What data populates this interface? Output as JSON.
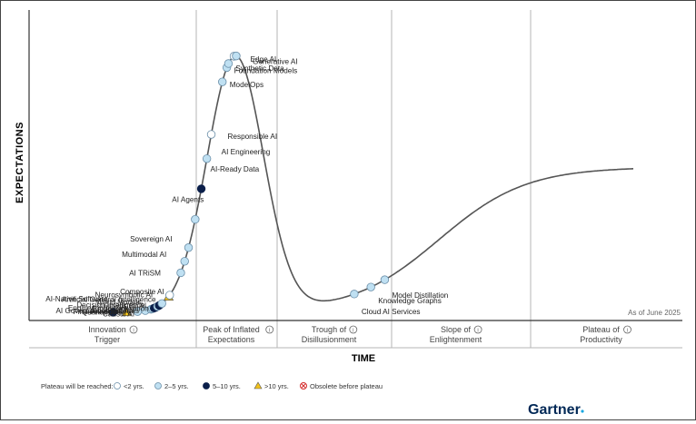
{
  "chart_data": {
    "type": "hype-cycle",
    "title": "",
    "ylabel": "EXPECTATIONS",
    "xlabel": "TIME",
    "as_of": "As of June 2025",
    "brand": "Gartner",
    "phases": [
      {
        "line1": "Innovation",
        "line2": "Trigger"
      },
      {
        "line1": "Peak of Inflated",
        "line2": "Expectations"
      },
      {
        "line1": "Trough of",
        "line2": "Disillusionment"
      },
      {
        "line1": "Slope of",
        "line2": "Enlightenment"
      },
      {
        "line1": "Plateau of",
        "line2": "Productivity"
      }
    ],
    "legend": {
      "title": "Plateau will be reached:",
      "items": [
        {
          "label": "<2 yrs.",
          "category": "lt2"
        },
        {
          "label": "2–5 yrs.",
          "category": "2to5"
        },
        {
          "label": "5–10 yrs.",
          "category": "5to10"
        },
        {
          "label": ">10 yrs.",
          "category": "gt10"
        },
        {
          "label": "Obsolete before plateau",
          "category": "obsolete"
        }
      ]
    },
    "category_colors": {
      "lt2": "#ffffff",
      "2to5": "#bfe0f2",
      "5to10": "#0b1f4a",
      "gt10": "#f2c21b",
      "obsolete": "#d42a2a"
    },
    "technologies": [
      {
        "name": "AI-Native Software Engineering",
        "lines": [
          "AI-Native Software",
          "Engineering"
        ],
        "category": "5to10",
        "t": 0.055
      },
      {
        "name": "Quantum AI",
        "lines": [
          "Quantum AI"
        ],
        "category": "gt10",
        "t": 0.079
      },
      {
        "name": "First-Principles AI",
        "lines": [
          "First-Principles AI"
        ],
        "category": "2to5",
        "t": 0.099
      },
      {
        "name": "AI Governance Platforms",
        "lines": [
          "AI Governance Platforms"
        ],
        "category": "2to5",
        "t": 0.113
      },
      {
        "name": "Causal AI",
        "lines": [
          "Causal AI"
        ],
        "category": "2to5",
        "t": 0.123
      },
      {
        "name": "Embodied AI",
        "lines": [
          "Embodied AI"
        ],
        "category": "2to5",
        "t": 0.126
      },
      {
        "name": "AI Simulation",
        "lines": [
          "AI Simulation"
        ],
        "category": "5to10",
        "t": 0.129
      },
      {
        "name": "World Models",
        "lines": [
          "World Models"
        ],
        "category": "5to10",
        "t": 0.132
      },
      {
        "name": "Decision Intelligence",
        "lines": [
          "Decision Intelligence"
        ],
        "category": "2to5",
        "t": 0.135
      },
      {
        "name": "FinOps for AI",
        "lines": [
          "FinOps for AI"
        ],
        "category": "5to10",
        "t": 0.138
      },
      {
        "name": "Neurosymbolic AI",
        "lines": [
          "Neurosymbolic AI"
        ],
        "category": "2to5",
        "t": 0.143
      },
      {
        "name": "Artificial General Intelligence",
        "lines": [
          "Artificial General Intelligence"
        ],
        "category": "gt10",
        "t": 0.155
      },
      {
        "name": "Composite AI",
        "lines": [
          "Composite AI"
        ],
        "category": "lt2",
        "t": 0.157
      },
      {
        "name": "AI TRiSM",
        "lines": [
          "AI TRiSM"
        ],
        "category": "2to5",
        "t": 0.177
      },
      {
        "name": "Multimodal AI",
        "lines": [
          "Multimodal AI"
        ],
        "category": "2to5",
        "t": 0.184
      },
      {
        "name": "Sovereign AI",
        "lines": [
          "Sovereign AI"
        ],
        "category": "2to5",
        "t": 0.191
      },
      {
        "name": "AI Agents",
        "lines": [
          "AI Agents"
        ],
        "category": "2to5",
        "t": 0.203
      },
      {
        "name": "AI-Ready Data",
        "lines": [
          "AI-Ready Data"
        ],
        "category": "5to10",
        "t": 0.214
      },
      {
        "name": "AI Engineering",
        "lines": [
          "AI Engineering"
        ],
        "category": "2to5",
        "t": 0.224
      },
      {
        "name": "Responsible AI",
        "lines": [
          "Responsible AI"
        ],
        "category": "lt2",
        "t": 0.232
      },
      {
        "name": "ModelOps",
        "lines": [
          "ModelOps"
        ],
        "category": "2to5",
        "t": 0.252
      },
      {
        "name": "Foundation Models",
        "lines": [
          "Foundation Models"
        ],
        "category": "2to5",
        "t": 0.26
      },
      {
        "name": "Synthetic Data",
        "lines": [
          "Synthetic Data"
        ],
        "category": "2to5",
        "t": 0.263
      },
      {
        "name": "Edge AI",
        "lines": [
          "Edge AI"
        ],
        "category": "lt2",
        "t": 0.273
      },
      {
        "name": "Generative AI",
        "lines": [
          "Generative AI"
        ],
        "category": "2to5",
        "t": 0.277
      },
      {
        "name": "Cloud AI Services",
        "lines": [
          "Cloud AI Services"
        ],
        "category": "2to5",
        "t": 0.49
      },
      {
        "name": "Knowledge Graphs",
        "lines": [
          "Knowledge Graphs"
        ],
        "category": "2to5",
        "t": 0.52
      },
      {
        "name": "Model Distillation",
        "lines": [
          "Model Distillation"
        ],
        "category": "2to5",
        "t": 0.545
      }
    ]
  }
}
